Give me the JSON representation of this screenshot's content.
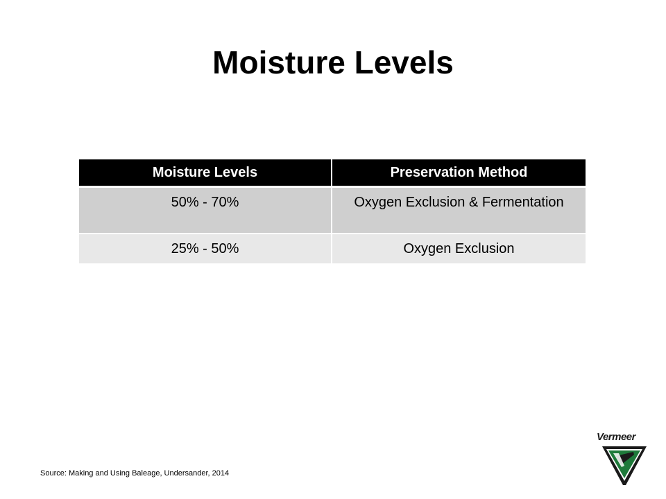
{
  "slide": {
    "title": "Moisture Levels"
  },
  "table": {
    "headers": [
      "Moisture Levels",
      "Preservation Method"
    ],
    "rows": [
      [
        "50% - 70%",
        "Oxygen Exclusion & Fermentation"
      ],
      [
        "25% - 50%",
        "Oxygen Exclusion"
      ]
    ]
  },
  "footer": {
    "source": "Source: Making and Using Baleage, Undersander,  2014"
  },
  "logo": {
    "wordmark": "Vermeer",
    "icon": "vermeer-v-logo-icon",
    "colors": {
      "green": "#1e7a3a",
      "dark": "#1a1a1a"
    }
  },
  "colors": {
    "header_bg": "#000000",
    "header_text": "#ffffff",
    "row_odd_bg": "#cfcfcf",
    "row_even_bg": "#e8e8e8"
  }
}
